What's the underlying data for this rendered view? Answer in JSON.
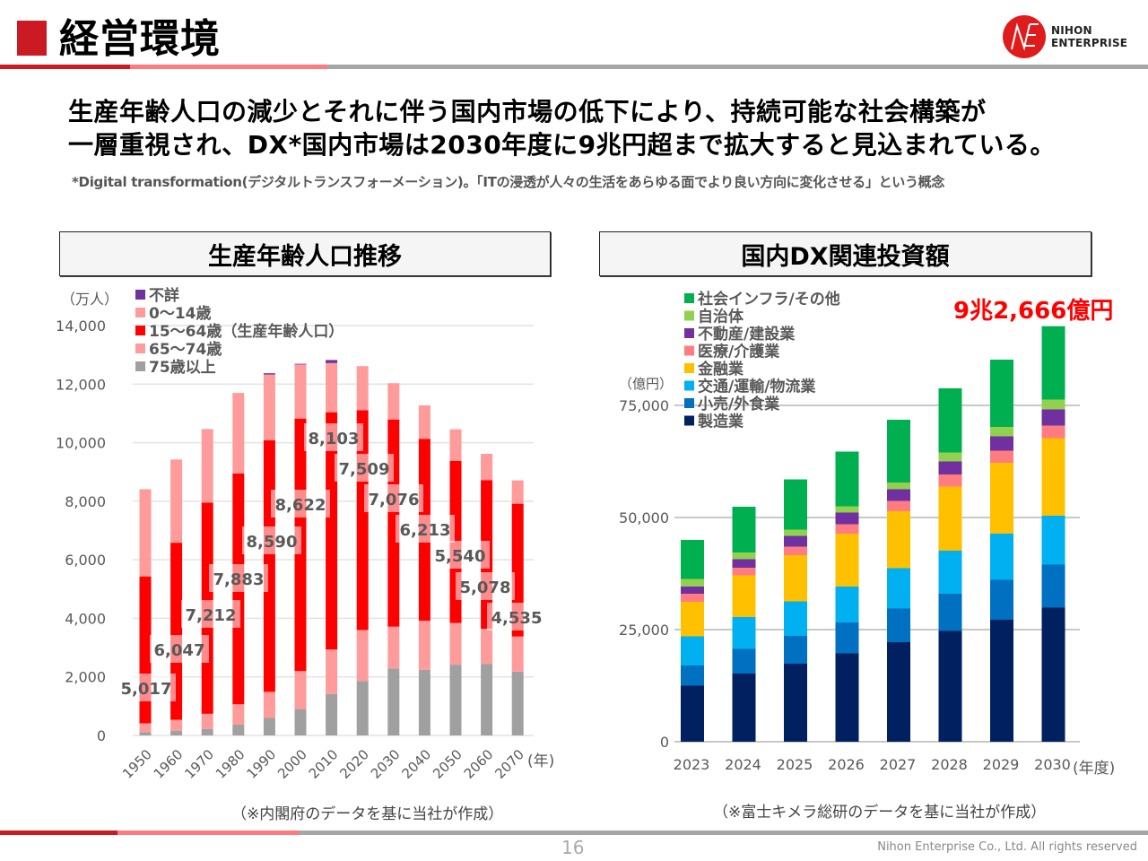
{
  "header": {
    "title": "経営環境",
    "logo_line1": "NIHON",
    "logo_line2": "ENTERPRISE"
  },
  "headline": {
    "line1": "生産年齢人口の減少とそれに伴う国内市場の低下により、持続可能な社会構築が",
    "line2": "一層重視され、DX*国内市場は2030年度に9兆円超まで拡大すると見込まれている。"
  },
  "footnote": "*Digital transformation(デジタルトランスフォーメーション)。「ITの浸透が人々の生活をあらゆる面でより良い方向に変化させる」という概念",
  "sections": {
    "left_title": "生産年齢人口推移",
    "right_title": "国内DX関連投資額"
  },
  "sources": {
    "left": "（※内閣府のデータを基に当社が作成）",
    "right": "（※富士キメラ総研のデータを基に当社が作成）"
  },
  "highlight": {
    "dx_total_2030": "9兆2,666億円"
  },
  "footer": {
    "page_number": "16",
    "copyright": "Nihon Enterprise Co., Ltd. All rights reserved"
  },
  "chart_data": [
    {
      "type": "bar",
      "stacked": true,
      "title": "生産年齢人口推移",
      "unit_label": "（万人）",
      "xlabel": "(年)",
      "ylabel": "",
      "ylim": [
        0,
        14000
      ],
      "yticks": [
        0,
        2000,
        4000,
        6000,
        8000,
        10000,
        12000,
        14000
      ],
      "ytick_labels": [
        "0",
        "2,000",
        "4,000",
        "6,000",
        "8,000",
        "10,000",
        "12,000",
        "14,000"
      ],
      "grid": true,
      "legend_position": "top-left",
      "categories": [
        "1950",
        "1960",
        "1970",
        "1980",
        "1990",
        "2000",
        "2010",
        "2020",
        "2030",
        "2040",
        "2050",
        "2060",
        "2070"
      ],
      "series": [
        {
          "name": "75歳以上",
          "color": "#a0a0a0",
          "values": [
            106,
            163,
            224,
            366,
            597,
            901,
            1419,
            1860,
            2288,
            2239,
            2417,
            2446,
            2180
          ]
        },
        {
          "name": "65〜74歳",
          "color": "#ff9b9b",
          "values": [
            309,
            373,
            516,
            699,
            892,
            1301,
            1517,
            1742,
            1428,
            1681,
            1424,
            1198,
            1200
          ]
        },
        {
          "name": "15〜64歳（生産年齢人口）",
          "color": "#ff0000",
          "values": [
            5017,
            6047,
            7212,
            7883,
            8590,
            8622,
            8103,
            7509,
            7076,
            6213,
            5540,
            5078,
            4535
          ]
        },
        {
          "name": "0〜14歳",
          "color": "#ff9b9b",
          "values": [
            2979,
            2843,
            2515,
            2751,
            2249,
            1847,
            1680,
            1503,
            1240,
            1142,
            1077,
            898,
            797
          ]
        },
        {
          "name": "不詳",
          "color": "#7030a0",
          "values": [
            0,
            0,
            0,
            0,
            43,
            23,
            104,
            0,
            0,
            0,
            0,
            0,
            0
          ]
        }
      ],
      "data_labels": [
        "5,017",
        "6,047",
        "7,212",
        "7,883",
        "8,590",
        "8,622",
        "8,103",
        "7,509",
        "7,076",
        "6,213",
        "5,540",
        "5,078",
        "4,535"
      ],
      "legend_order": [
        "不詳",
        "0〜14歳",
        "15〜64歳（生産年齢人口）",
        "65〜74歳",
        "75歳以上"
      ]
    },
    {
      "type": "bar",
      "stacked": true,
      "title": "国内DX関連投資額",
      "unit_label": "（億円）",
      "xlabel": "(年度)",
      "ylabel": "",
      "ylim": [
        0,
        75000
      ],
      "yticks": [
        0,
        25000,
        50000,
        75000
      ],
      "ytick_labels": [
        "0",
        "25,000",
        "50,000",
        "75,000"
      ],
      "grid": true,
      "legend_position": "top-left",
      "categories": [
        "2023",
        "2024",
        "2025",
        "2026",
        "2027",
        "2028",
        "2029",
        "2030"
      ],
      "series": [
        {
          "name": "製造業",
          "color": "#002060",
          "values": [
            12500,
            15200,
            17400,
            19700,
            22200,
            24700,
            27200,
            29900
          ]
        },
        {
          "name": "小売/外食業",
          "color": "#0070c0",
          "values": [
            4500,
            5500,
            6200,
            6900,
            7500,
            8300,
            8900,
            9600
          ]
        },
        {
          "name": "交通/運輸/物流業",
          "color": "#00b0f0",
          "values": [
            6500,
            7100,
            7700,
            8000,
            9000,
            9600,
            10300,
            10900
          ]
        },
        {
          "name": "金融業",
          "color": "#ffc000",
          "values": [
            7700,
            9300,
            10300,
            11800,
            12700,
            14300,
            15800,
            17300
          ]
        },
        {
          "name": "医療/介護業",
          "color": "#ff7c80",
          "values": [
            1800,
            1700,
            1900,
            2100,
            2300,
            2700,
            2700,
            2800
          ]
        },
        {
          "name": "不動産/建設業",
          "color": "#7030a0",
          "values": [
            1600,
            1900,
            2400,
            2600,
            2600,
            2900,
            3200,
            3600
          ]
        },
        {
          "name": "自治体",
          "color": "#92d050",
          "values": [
            1700,
            1500,
            1400,
            1400,
            1500,
            2000,
            2100,
            2200
          ]
        },
        {
          "name": "社会インフラ/その他",
          "color": "#00b050",
          "values": [
            8700,
            10200,
            11200,
            12200,
            14000,
            14300,
            15000,
            16366
          ]
        }
      ],
      "legend_order": [
        "社会インフラ/その他",
        "自治体",
        "不動産/建設業",
        "医療/介護業",
        "金融業",
        "交通/運輸/物流業",
        "小売/外食業",
        "製造業"
      ],
      "annotation": "9兆2,666億円"
    }
  ]
}
